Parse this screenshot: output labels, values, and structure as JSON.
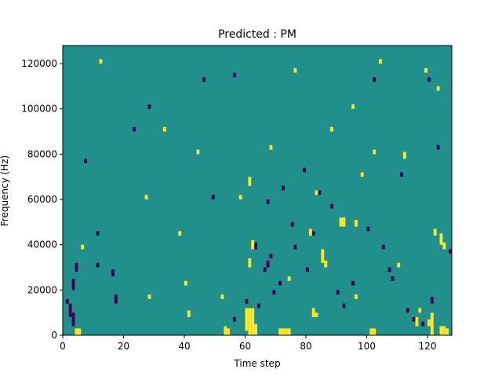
{
  "chart_data": {
    "type": "heatmap",
    "title": "Predicted : PM",
    "xlabel": "Time step",
    "ylabel": "Frequency (Hz)",
    "xlim": [
      0,
      128
    ],
    "ylim": [
      0,
      128000
    ],
    "xticks": [
      0,
      20,
      40,
      60,
      80,
      100,
      120
    ],
    "yticks": [
      0,
      20000,
      40000,
      60000,
      80000,
      100000,
      120000
    ],
    "grid": false,
    "legend": "none",
    "grid_cells": {
      "time_steps": 128,
      "frequency_bins": 128
    },
    "colors": {
      "background": "#21908d",
      "high": "#fde725",
      "low": "#440154"
    },
    "high_cells": [
      [
        61,
        0,
        12
      ],
      [
        62,
        0,
        12
      ],
      [
        63,
        0,
        5
      ],
      [
        60,
        2,
        10
      ],
      [
        61,
        30,
        4
      ],
      [
        62,
        38,
        4
      ],
      [
        4,
        0,
        3
      ],
      [
        5,
        0,
        3
      ],
      [
        41,
        8,
        3
      ],
      [
        71,
        0,
        3
      ],
      [
        72,
        0,
        3
      ],
      [
        73,
        0,
        3
      ],
      [
        74,
        0,
        3
      ],
      [
        82,
        8,
        4
      ],
      [
        83,
        8,
        2
      ],
      [
        101,
        0,
        3
      ],
      [
        102,
        0,
        3
      ],
      [
        121,
        0,
        10
      ],
      [
        120,
        4,
        3
      ],
      [
        116,
        4,
        4
      ],
      [
        124,
        0,
        4
      ],
      [
        125,
        0,
        4
      ],
      [
        126,
        0,
        3
      ],
      [
        53,
        0,
        4
      ],
      [
        54,
        0,
        3
      ],
      [
        81,
        44,
        3
      ],
      [
        85,
        32,
        6
      ],
      [
        86,
        30,
        3
      ],
      [
        91,
        48,
        4
      ],
      [
        92,
        48,
        4
      ],
      [
        96,
        48,
        3
      ],
      [
        124,
        40,
        5
      ],
      [
        125,
        38,
        3
      ],
      [
        122,
        44,
        3
      ],
      [
        58,
        60,
        2
      ],
      [
        83,
        62,
        2
      ],
      [
        98,
        70,
        2
      ],
      [
        102,
        80,
        2
      ],
      [
        112,
        78,
        3
      ],
      [
        40,
        22,
        2
      ],
      [
        61,
        66,
        4
      ],
      [
        6,
        38,
        2
      ],
      [
        27,
        60,
        2
      ],
      [
        44,
        80,
        2
      ],
      [
        68,
        82,
        2
      ],
      [
        95,
        100,
        2
      ],
      [
        104,
        120,
        2
      ],
      [
        119,
        116,
        2
      ],
      [
        123,
        108,
        2
      ],
      [
        12,
        120,
        2
      ],
      [
        33,
        90,
        2
      ],
      [
        76,
        116,
        2
      ],
      [
        88,
        90,
        2
      ],
      [
        110,
        30,
        2
      ],
      [
        117,
        10,
        2
      ],
      [
        28,
        16,
        2
      ],
      [
        96,
        16,
        2
      ],
      [
        38,
        44,
        2
      ],
      [
        74,
        24,
        2
      ],
      [
        52,
        16,
        2
      ]
    ],
    "low_cells": [
      [
        2,
        8,
        6
      ],
      [
        3,
        4,
        6
      ],
      [
        3,
        20,
        5
      ],
      [
        4,
        28,
        4
      ],
      [
        1,
        14,
        2
      ],
      [
        17,
        14,
        4
      ],
      [
        16,
        26,
        3
      ],
      [
        11,
        44,
        2
      ],
      [
        63,
        38,
        3
      ],
      [
        66,
        28,
        2
      ],
      [
        67,
        30,
        3
      ],
      [
        68,
        34,
        2
      ],
      [
        69,
        18,
        2
      ],
      [
        64,
        12,
        2
      ],
      [
        71,
        22,
        2
      ],
      [
        76,
        38,
        2
      ],
      [
        84,
        62,
        2
      ],
      [
        80,
        28,
        2
      ],
      [
        92,
        12,
        2
      ],
      [
        95,
        22,
        2
      ],
      [
        100,
        46,
        2
      ],
      [
        105,
        38,
        2
      ],
      [
        107,
        28,
        2
      ],
      [
        108,
        24,
        2
      ],
      [
        115,
        6,
        2
      ],
      [
        118,
        4,
        2
      ],
      [
        121,
        14,
        3
      ],
      [
        127,
        36,
        2
      ],
      [
        123,
        82,
        2
      ],
      [
        120,
        112,
        2
      ],
      [
        49,
        60,
        2
      ],
      [
        46,
        112,
        2
      ],
      [
        56,
        114,
        2
      ],
      [
        79,
        72,
        2
      ],
      [
        67,
        58,
        2
      ],
      [
        72,
        64,
        2
      ],
      [
        82,
        44,
        2
      ],
      [
        90,
        18,
        2
      ],
      [
        102,
        112,
        2
      ],
      [
        113,
        10,
        2
      ],
      [
        111,
        70,
        2
      ],
      [
        88,
        56,
        2
      ],
      [
        23,
        90,
        2
      ],
      [
        28,
        100,
        2
      ],
      [
        7,
        76,
        2
      ],
      [
        11,
        30,
        2
      ],
      [
        56,
        6,
        2
      ],
      [
        60,
        14,
        2
      ],
      [
        75,
        48,
        2
      ]
    ]
  }
}
